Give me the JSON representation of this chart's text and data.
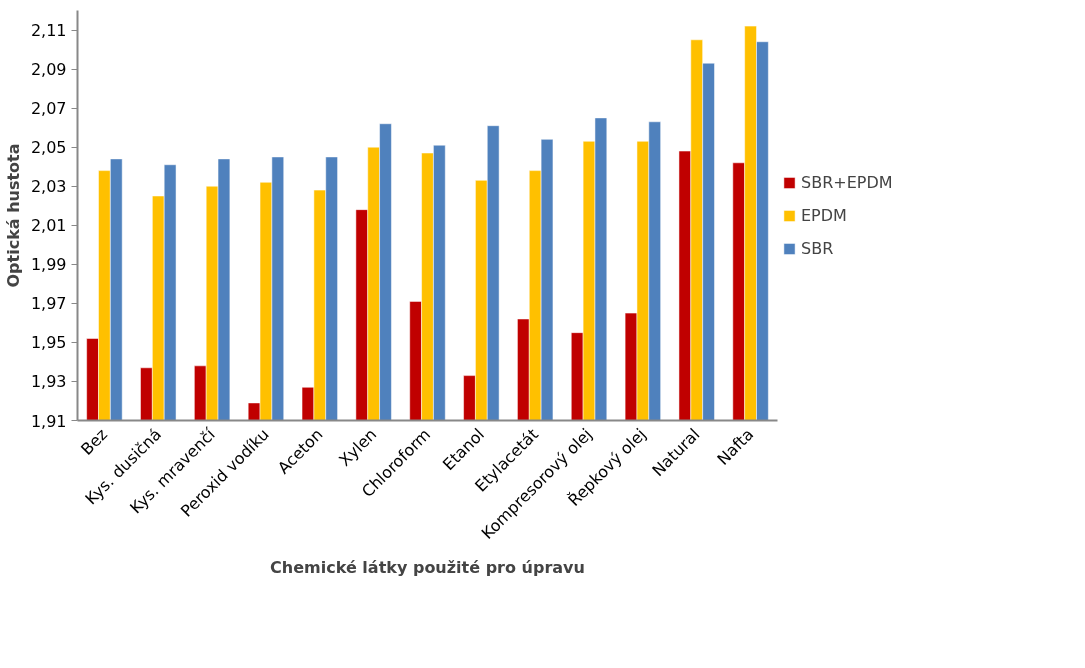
{
  "chart_data": {
    "type": "bar",
    "xlabel": "Chemické látky použité pro úpravu",
    "ylabel": "Optická hustota",
    "categories": [
      "Bez",
      "Kys. dusičná",
      "Kys. mravenčí",
      "Peroxid vodíku",
      "Aceton",
      "Xylen",
      "Chloroform",
      "Etanol",
      "Etylacetát",
      "Kompresorový olej",
      "Řepkový olej",
      "Natural",
      "Nafta"
    ],
    "series": [
      {
        "name": "SBR+EPDM",
        "color": "#c00000",
        "values": [
          1.952,
          1.937,
          1.938,
          1.919,
          1.927,
          2.018,
          1.971,
          1.933,
          1.962,
          1.955,
          1.965,
          2.048,
          2.042
        ]
      },
      {
        "name": "EPDM",
        "color": "#ffc000",
        "values": [
          2.038,
          2.025,
          2.03,
          2.032,
          2.028,
          2.05,
          2.047,
          2.033,
          2.038,
          2.053,
          2.053,
          2.105,
          2.112
        ]
      },
      {
        "name": "SBR",
        "color": "#4f81bd",
        "values": [
          2.044,
          2.041,
          2.044,
          2.045,
          2.045,
          2.062,
          2.051,
          2.061,
          2.054,
          2.065,
          2.063,
          2.093,
          2.104
        ]
      }
    ],
    "ylim": [
      1.91,
      2.12
    ],
    "yticks": [
      {
        "value": 1.91,
        "label": "1,91"
      },
      {
        "value": 1.93,
        "label": "1,93"
      },
      {
        "value": 1.95,
        "label": "1,95"
      },
      {
        "value": 1.97,
        "label": "1,97"
      },
      {
        "value": 1.99,
        "label": "1,99"
      },
      {
        "value": 2.01,
        "label": "2,01"
      },
      {
        "value": 2.03,
        "label": "2,03"
      },
      {
        "value": 2.05,
        "label": "2,05"
      },
      {
        "value": 2.07,
        "label": "2,07"
      },
      {
        "value": 2.09,
        "label": "2,09"
      },
      {
        "value": 2.11,
        "label": "2,11"
      }
    ],
    "grid": false,
    "legend": "right"
  }
}
